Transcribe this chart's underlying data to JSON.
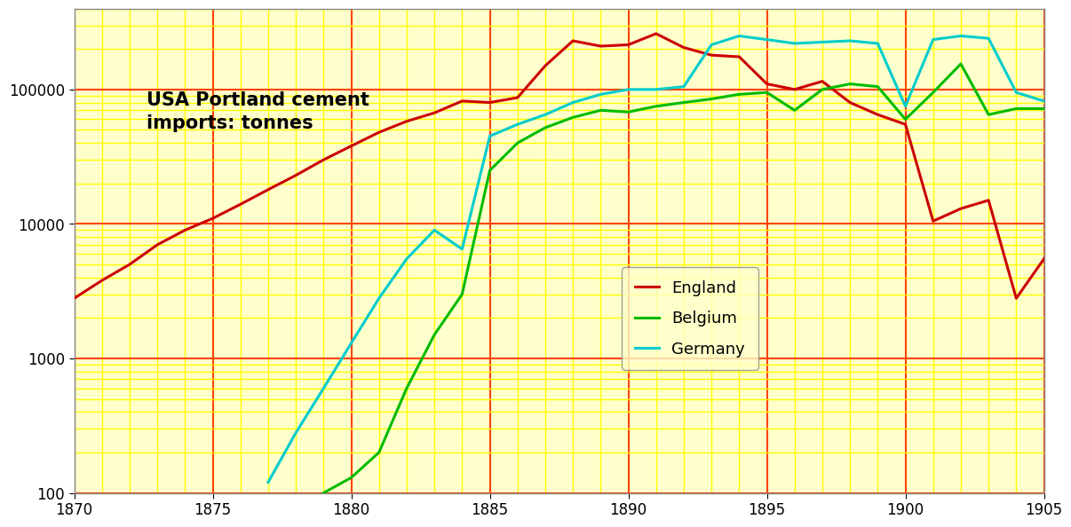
{
  "title": "USA Portland cement\nimports: tonnes",
  "background_color": "#ffffff",
  "plot_bg_color": "#ffffcc",
  "grid_major_color": "#ff4400",
  "grid_minor_color": "#ffff00",
  "england": {
    "color": "#cc0000",
    "data": {
      "1870": 2800,
      "1871": 3800,
      "1872": 5000,
      "1873": 7000,
      "1874": 9000,
      "1875": 11000,
      "1876": 14000,
      "1877": 18000,
      "1878": 23000,
      "1879": 30000,
      "1880": 38000,
      "1881": 48000,
      "1882": 58000,
      "1883": 67000,
      "1884": 82000,
      "1885": 80000,
      "1886": 87000,
      "1887": 150000,
      "1888": 230000,
      "1889": 210000,
      "1890": 215000,
      "1891": 260000,
      "1892": 205000,
      "1893": 180000,
      "1894": 175000,
      "1895": 110000,
      "1896": 100000,
      "1897": 115000,
      "1898": 80000,
      "1899": 65000,
      "1900": 55000,
      "1901": 10500,
      "1902": 13000,
      "1903": 15000,
      "1904": 2800,
      "1905": 5500
    }
  },
  "belgium": {
    "color": "#00bb00",
    "data": {
      "1879": 100,
      "1880": 130,
      "1881": 200,
      "1882": 600,
      "1883": 1500,
      "1884": 3000,
      "1885": 25000,
      "1886": 40000,
      "1887": 52000,
      "1888": 62000,
      "1889": 70000,
      "1890": 68000,
      "1891": 75000,
      "1892": 80000,
      "1893": 85000,
      "1894": 92000,
      "1895": 95000,
      "1896": 70000,
      "1897": 100000,
      "1898": 110000,
      "1899": 105000,
      "1900": 60000,
      "1901": 95000,
      "1902": 155000,
      "1903": 65000,
      "1904": 72000,
      "1905": 72000
    }
  },
  "germany": {
    "color": "#00cccc",
    "data": {
      "1877": 120,
      "1878": 280,
      "1879": 600,
      "1880": 1300,
      "1881": 2800,
      "1882": 5500,
      "1883": 9000,
      "1884": 6500,
      "1885": 45000,
      "1886": 55000,
      "1887": 65000,
      "1888": 80000,
      "1889": 92000,
      "1890": 100000,
      "1891": 100000,
      "1892": 105000,
      "1893": 215000,
      "1894": 250000,
      "1895": 235000,
      "1896": 220000,
      "1897": 225000,
      "1898": 230000,
      "1899": 220000,
      "1900": 75000,
      "1901": 235000,
      "1902": 250000,
      "1903": 240000,
      "1904": 95000,
      "1905": 82000
    }
  },
  "xlim": [
    1870,
    1905
  ],
  "ylim": [
    100,
    400000
  ],
  "xticks": [
    1870,
    1875,
    1880,
    1885,
    1890,
    1895,
    1900,
    1905
  ]
}
